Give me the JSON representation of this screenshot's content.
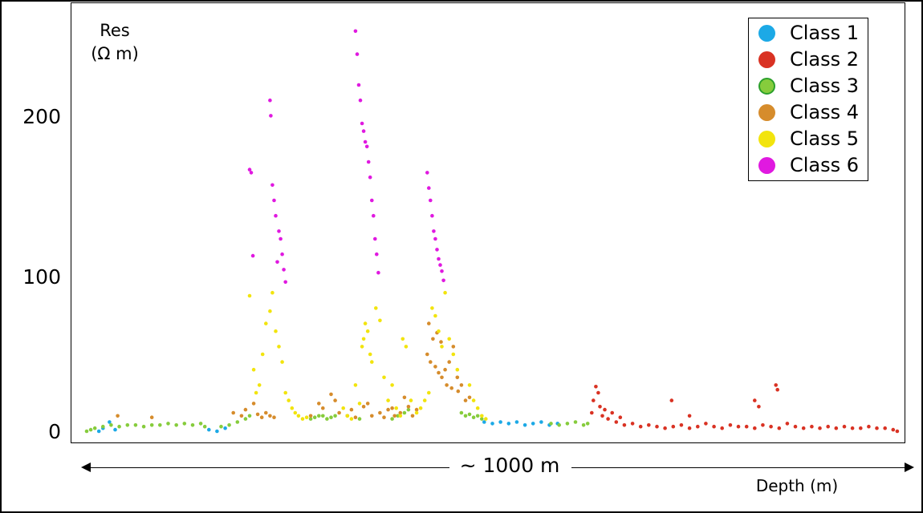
{
  "chart_data": {
    "type": "scatter",
    "ylabel_line1": "Res",
    "ylabel_line2": "(Ω m)",
    "xlabel": "Depth (m)",
    "span_label": "~ 1000 m",
    "yticks": [
      "0",
      "100",
      "200"
    ],
    "ylim": [
      0,
      260
    ],
    "xlim": [
      0,
      1000
    ],
    "grid": false,
    "legend_position": "top-right",
    "series": [
      {
        "name": "Class 1",
        "color": "#1ca9e6",
        "x": [
          15,
          20,
          28,
          35,
          150,
          160,
          170,
          488,
          498,
          508,
          518,
          528,
          538,
          548,
          558,
          568,
          578
        ],
        "y": [
          0,
          2,
          6,
          1,
          1,
          0,
          2,
          6,
          5,
          6,
          5,
          6,
          4,
          5,
          6,
          4,
          5
        ]
      },
      {
        "name": "Class 2",
        "color": "#d93223",
        "x": [
          620,
          622,
          625,
          628,
          630,
          633,
          636,
          640,
          645,
          650,
          655,
          660,
          670,
          680,
          690,
          700,
          710,
          720,
          730,
          740,
          750,
          760,
          770,
          780,
          790,
          800,
          810,
          820,
          830,
          840,
          850,
          860,
          870,
          880,
          890,
          900,
          910,
          920,
          930,
          940,
          950,
          960,
          970,
          980,
          990,
          995,
          718,
          740,
          820,
          825,
          846,
          848
        ],
        "y": [
          12,
          20,
          29,
          25,
          16,
          10,
          14,
          8,
          12,
          6,
          9,
          4,
          5,
          3,
          4,
          3,
          2,
          3,
          4,
          2,
          3,
          5,
          3,
          2,
          4,
          3,
          3,
          2,
          4,
          3,
          2,
          5,
          3,
          2,
          3,
          2,
          3,
          2,
          3,
          2,
          2,
          3,
          2,
          2,
          1,
          0,
          20,
          10,
          20,
          16,
          30,
          27
        ]
      },
      {
        "name": "Class 3",
        "color": "#86cc3c",
        "x": [
          0,
          5,
          10,
          20,
          30,
          40,
          50,
          60,
          70,
          80,
          90,
          100,
          110,
          120,
          130,
          140,
          145,
          165,
          175,
          185,
          195,
          200,
          275,
          280,
          285,
          290,
          295,
          300,
          305,
          320,
          335,
          375,
          382,
          390,
          395,
          460,
          465,
          470,
          475,
          480,
          485,
          570,
          580,
          590,
          600,
          610,
          615
        ],
        "y": [
          0,
          1,
          2,
          3,
          4,
          3,
          4,
          4,
          3,
          4,
          4,
          5,
          4,
          5,
          4,
          5,
          3,
          3,
          4,
          6,
          8,
          10,
          8,
          9,
          10,
          10,
          8,
          9,
          10,
          10,
          8,
          8,
          10,
          12,
          14,
          12,
          10,
          11,
          9,
          10,
          8,
          5,
          4,
          5,
          6,
          4,
          5
        ]
      },
      {
        "name": "Class 4",
        "color": "#d68c2c",
        "x": [
          38,
          80,
          180,
          190,
          195,
          205,
          210,
          215,
          220,
          225,
          230,
          275,
          285,
          290,
          300,
          305,
          310,
          320,
          325,
          330,
          340,
          345,
          350,
          360,
          365,
          370,
          375,
          378,
          385,
          390,
          395,
          400,
          405,
          420,
          425,
          430,
          435,
          440,
          445,
          450,
          455,
          460,
          465,
          418,
          422,
          428,
          432,
          436,
          442,
          448,
          456,
          470
        ],
        "y": [
          10,
          9,
          12,
          10,
          14,
          18,
          11,
          9,
          12,
          10,
          9,
          10,
          18,
          15,
          24,
          20,
          12,
          10,
          14,
          9,
          16,
          18,
          10,
          12,
          9,
          14,
          15,
          10,
          12,
          22,
          16,
          10,
          14,
          70,
          60,
          64,
          58,
          40,
          45,
          55,
          35,
          30,
          20,
          50,
          45,
          42,
          38,
          35,
          30,
          28,
          26,
          22
        ]
      },
      {
        "name": "Class 5",
        "color": "#f2e40d",
        "x": [
          200,
          205,
          208,
          212,
          216,
          220,
          225,
          228,
          232,
          236,
          240,
          244,
          248,
          252,
          256,
          260,
          265,
          270,
          315,
          320,
          325,
          330,
          335,
          338,
          340,
          342,
          345,
          348,
          350,
          355,
          360,
          365,
          370,
          375,
          380,
          385,
          388,
          392,
          398,
          405,
          410,
          415,
          420,
          424,
          428,
          432,
          436,
          440,
          445,
          450,
          455,
          470,
          475,
          480,
          485,
          490
        ],
        "y": [
          88,
          40,
          25,
          30,
          50,
          70,
          78,
          90,
          65,
          55,
          45,
          25,
          20,
          15,
          12,
          10,
          8,
          9,
          15,
          10,
          8,
          30,
          18,
          55,
          60,
          70,
          65,
          50,
          45,
          80,
          72,
          35,
          20,
          30,
          15,
          10,
          60,
          55,
          20,
          12,
          15,
          20,
          25,
          80,
          75,
          65,
          55,
          90,
          60,
          50,
          40,
          30,
          20,
          15,
          10,
          8
        ]
      },
      {
        "name": "Class 6",
        "color": "#e019e0",
        "x": [
          200,
          202,
          204,
          225,
          226,
          228,
          230,
          232,
          234,
          236,
          238,
          240,
          242,
          244,
          330,
          332,
          334,
          336,
          338,
          340,
          342,
          344,
          346,
          348,
          350,
          352,
          354,
          356,
          358,
          418,
          420,
          422,
          424,
          426,
          428,
          430,
          432,
          434,
          436,
          438
        ],
        "y": [
          170,
          168,
          114,
          215,
          205,
          160,
          150,
          140,
          110,
          130,
          125,
          115,
          105,
          97,
          260,
          245,
          225,
          215,
          200,
          195,
          188,
          185,
          175,
          165,
          150,
          140,
          125,
          115,
          103,
          168,
          158,
          150,
          140,
          130,
          125,
          118,
          112,
          108,
          104,
          98
        ]
      }
    ]
  }
}
